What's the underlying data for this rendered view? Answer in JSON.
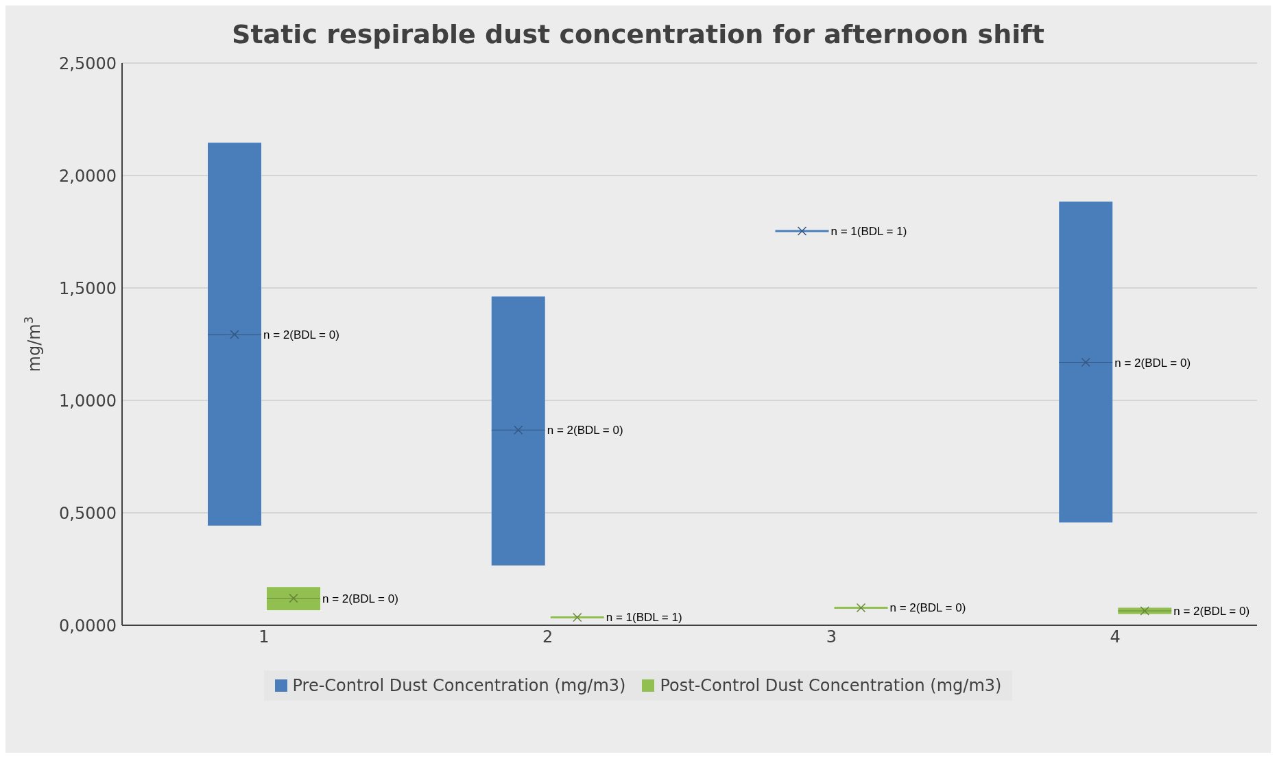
{
  "chart_data": {
    "type": "box",
    "title": "Static respirable dust concentration for afternoon shift",
    "ylabel": "mg/m$^{3}$",
    "categories": [
      "1",
      "2",
      "3",
      "4"
    ],
    "series": [
      {
        "name": "Pre-Control Dust Concentration (mg/m3)",
        "color": "#4a7ebb",
        "boxes": [
          {
            "low": 0.443,
            "q1": 0.443,
            "median": 1.293,
            "q3": 2.146,
            "high": 2.146,
            "mean": 1.293
          },
          {
            "low": 0.266,
            "q1": 0.266,
            "median": 0.868,
            "q3": 1.462,
            "high": 1.462,
            "mean": 0.868
          },
          {
            "low": 1.753,
            "q1": 1.753,
            "median": 1.753,
            "q3": 1.753,
            "high": 1.753,
            "mean": 1.753
          },
          {
            "low": 0.457,
            "q1": 0.457,
            "median": 1.169,
            "q3": 1.884,
            "high": 1.884,
            "mean": 1.169
          }
        ]
      },
      {
        "name": "Post-Control Dust Concentration (mg/m3)",
        "color": "#92c050",
        "boxes": [
          {
            "low": 0.067,
            "q1": 0.067,
            "median": 0.12,
            "q3": 0.17,
            "high": 0.17,
            "mean": 0.12
          },
          {
            "low": 0.035,
            "q1": 0.035,
            "median": 0.035,
            "q3": 0.035,
            "high": 0.035,
            "mean": 0.035
          },
          {
            "low": 0.078,
            "q1": 0.078,
            "median": 0.078,
            "q3": 0.078,
            "high": 0.078,
            "mean": 0.078
          },
          {
            "low": 0.05,
            "q1": 0.05,
            "median": 0.064,
            "q3": 0.078,
            "high": 0.078,
            "mean": 0.064
          }
        ]
      }
    ],
    "annotations": [
      "n = 2(BDL = 0)",
      "n = 2(BDL = 0)",
      "n = 1(BDL = 1)",
      "n = 2(BDL = 0)",
      "n = 2(BDL = 0)",
      "n = 1(BDL = 1)",
      "n = 2(BDL = 0)",
      "n = 2(BDL = 0)"
    ],
    "ylim": [
      0,
      2.5
    ],
    "yticks": [
      {
        "value": 0,
        "label": "0,0000"
      },
      {
        "value": 0.5,
        "label": "0,5000"
      },
      {
        "value": 1,
        "label": "1,0000"
      },
      {
        "value": 1.5,
        "label": "1,5000"
      },
      {
        "value": 2,
        "label": "2,0000"
      },
      {
        "value": 2.5,
        "label": "2,5000"
      }
    ],
    "grid": "y",
    "legend": "bottom",
    "marker": "cross"
  }
}
